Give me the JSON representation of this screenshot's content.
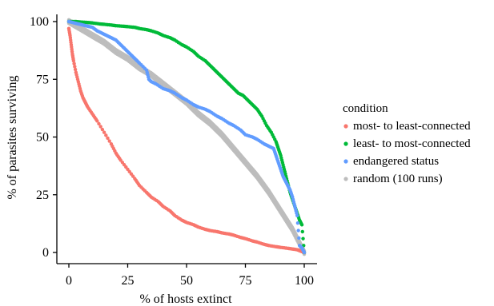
{
  "chart_data": {
    "type": "scatter",
    "title": "",
    "xlabel": "% of hosts extinct",
    "ylabel": "% of parasites surviving",
    "xlim": [
      0,
      100
    ],
    "ylim": [
      0,
      100
    ],
    "xticks": [
      0,
      25,
      50,
      75,
      100
    ],
    "yticks": [
      0,
      25,
      50,
      75,
      100
    ],
    "grid": false,
    "legend": {
      "title": "condition",
      "placement": "right"
    },
    "series": [
      {
        "name": "most- to least-connected",
        "color": "#F8766D",
        "x": [
          0,
          0.5,
          1,
          1.5,
          2,
          3,
          4,
          5,
          6,
          7,
          8,
          10,
          12,
          15,
          18,
          20,
          22,
          25,
          28,
          30,
          33,
          35,
          38,
          40,
          43,
          45,
          48,
          50,
          53,
          55,
          58,
          60,
          63,
          65,
          68,
          70,
          73,
          75,
          78,
          80,
          83,
          85,
          88,
          90,
          93,
          95,
          97,
          98,
          99,
          100
        ],
        "y": [
          97,
          94,
          90,
          86,
          83,
          78,
          74,
          70,
          67,
          65,
          63,
          60,
          57,
          52,
          47,
          43,
          40,
          36,
          32,
          29,
          26,
          24,
          22,
          20,
          18,
          16,
          14,
          13,
          12,
          11,
          10,
          9.5,
          9,
          8.5,
          8,
          7.5,
          6.5,
          6,
          5,
          4.5,
          3.5,
          3,
          2.5,
          2.2,
          1.8,
          1.5,
          1.2,
          0.8,
          0.4,
          0
        ]
      },
      {
        "name": "least- to most-connected",
        "color": "#00BA38",
        "x": [
          0,
          3,
          5,
          8,
          10,
          13,
          15,
          18,
          20,
          23,
          25,
          28,
          30,
          33,
          35,
          38,
          40,
          43,
          45,
          48,
          50,
          53,
          55,
          58,
          60,
          62,
          64,
          66,
          68,
          70,
          72,
          74,
          76,
          78,
          80,
          82,
          84,
          86,
          88,
          89,
          90,
          91,
          92,
          93,
          94,
          95,
          96,
          97,
          98,
          99,
          100
        ],
        "y": [
          100,
          100,
          99.8,
          99.6,
          99.4,
          99,
          98.8,
          98.5,
          98.2,
          98,
          97.8,
          97.5,
          97,
          96.5,
          96,
          95,
          94,
          93,
          92,
          90,
          89,
          87,
          85,
          83,
          81,
          79,
          77,
          75,
          73,
          71,
          69,
          68,
          66,
          64,
          62,
          59,
          55,
          52,
          48,
          45,
          42,
          38,
          34,
          30,
          26,
          23,
          20,
          17,
          14,
          12,
          0
        ]
      },
      {
        "name": "endangered status",
        "color": "#619CFF",
        "x": [
          0,
          2,
          4,
          6,
          8,
          10,
          12,
          14,
          16,
          18,
          20,
          22,
          24,
          26,
          28,
          30,
          33,
          34,
          35,
          37,
          40,
          43,
          45,
          48,
          50,
          53,
          55,
          58,
          60,
          63,
          65,
          68,
          70,
          73,
          75,
          78,
          80,
          83,
          85,
          87,
          88,
          89,
          90,
          91,
          92,
          93,
          94,
          95,
          96,
          97,
          98,
          99,
          100
        ],
        "y": [
          100,
          99.5,
          99,
          98.5,
          98,
          97.5,
          96,
          95,
          94,
          93,
          92,
          90,
          88,
          86,
          84,
          82,
          79,
          75,
          74,
          73,
          71,
          70,
          69,
          67,
          66,
          64,
          63,
          62,
          61,
          59,
          58,
          56,
          55,
          53,
          51,
          50,
          49,
          47,
          46,
          45,
          42,
          39,
          36,
          33,
          31,
          29,
          27,
          24,
          20,
          16,
          3,
          2,
          0
        ]
      },
      {
        "name": "random (100 runs)",
        "color": "#BDBDBD",
        "x": [
          0,
          5,
          10,
          15,
          20,
          25,
          30,
          35,
          40,
          45,
          50,
          55,
          60,
          65,
          70,
          75,
          80,
          85,
          90,
          95,
          100
        ],
        "y": [
          100,
          97,
          94,
          91,
          87,
          84,
          80,
          77,
          73,
          69,
          65,
          60,
          56,
          51,
          45,
          39,
          33,
          26,
          18,
          10,
          0
        ]
      }
    ]
  }
}
